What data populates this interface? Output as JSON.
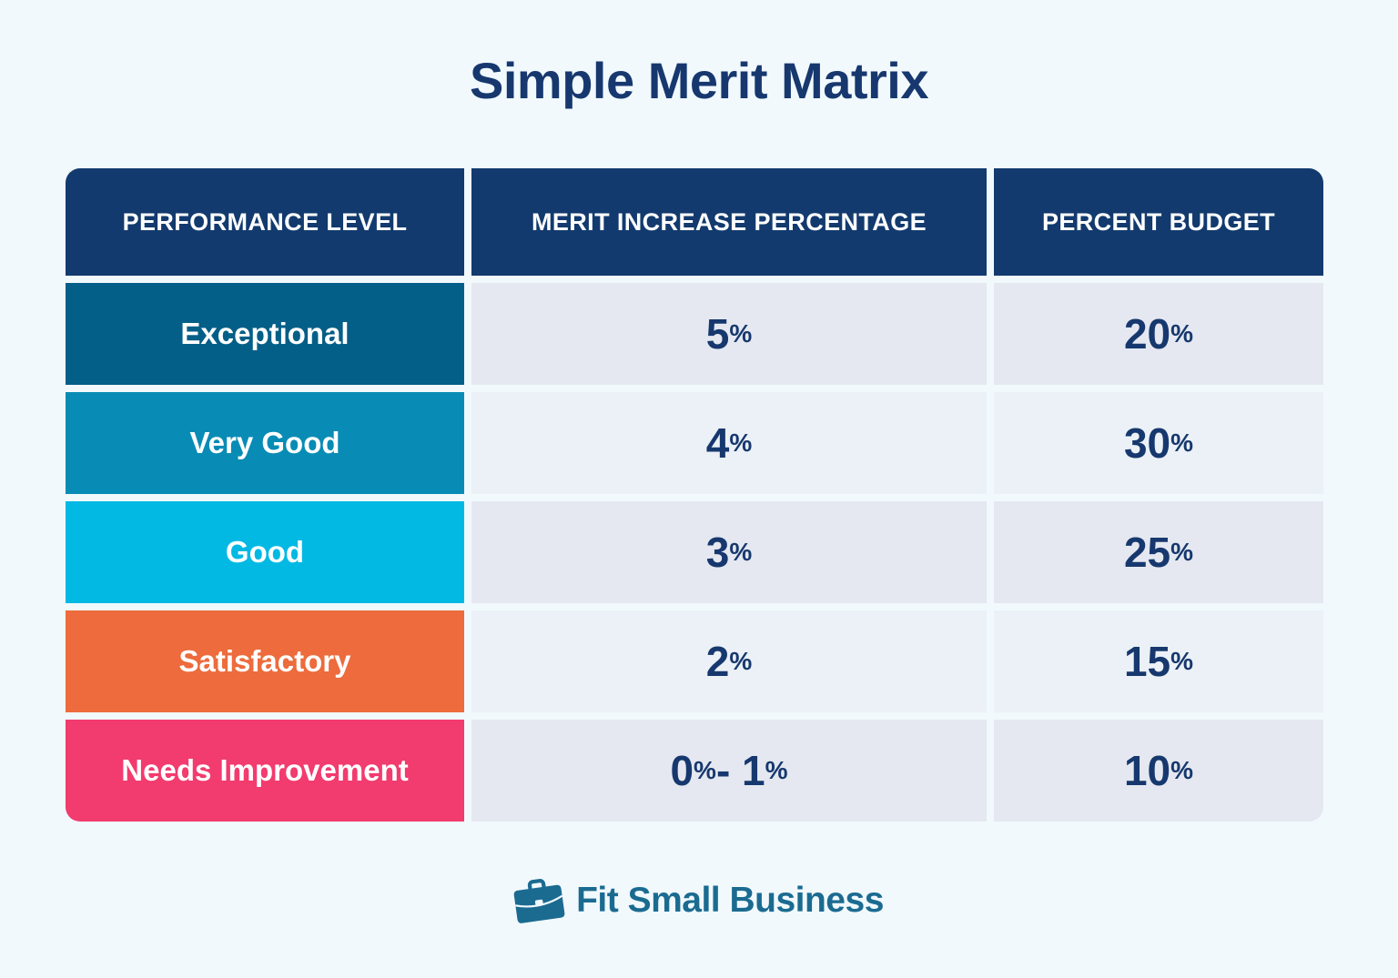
{
  "title": "Simple Merit Matrix",
  "colors": {
    "background": "#f1f9fd",
    "title_navy": "#17386e",
    "header_bg": "#123a6e",
    "header_text": "#ffffff",
    "value_navy": "#16386e",
    "cell_bg_odd": "#e5e8f0",
    "cell_bg_even": "#ebf1f6",
    "brand_teal": "#1b6b91"
  },
  "table": {
    "headers": [
      "PERFORMANCE LEVEL",
      "MERIT INCREASE PERCENTAGE",
      "PERCENT BUDGET"
    ],
    "rows": [
      {
        "label": "Exceptional",
        "label_bg": "#045f88",
        "merit": "5%",
        "budget": "20%"
      },
      {
        "label": "Very Good",
        "label_bg": "#088cb5",
        "merit": "4%",
        "budget": "30%"
      },
      {
        "label": "Good",
        "label_bg": "#02b9e4",
        "merit": "3%",
        "budget": "25%"
      },
      {
        "label": "Satisfactory",
        "label_bg": "#ed6b3c",
        "merit": "2%",
        "budget": "15%"
      },
      {
        "label": "Needs Improvement",
        "label_bg": "#f23b6e",
        "merit": "0% - 1%",
        "budget": "10%"
      }
    ]
  },
  "footer": {
    "brand": "Fit Small Business"
  },
  "chart_data": {
    "type": "table",
    "title": "Simple Merit Matrix",
    "columns": [
      "Performance Level",
      "Merit Increase Percentage",
      "Percent Budget"
    ],
    "rows": [
      [
        "Exceptional",
        "5%",
        "20%"
      ],
      [
        "Very Good",
        "4%",
        "30%"
      ],
      [
        "Good",
        "3%",
        "25%"
      ],
      [
        "Satisfactory",
        "2%",
        "15%"
      ],
      [
        "Needs Improvement",
        "0% - 1%",
        "10%"
      ]
    ]
  }
}
